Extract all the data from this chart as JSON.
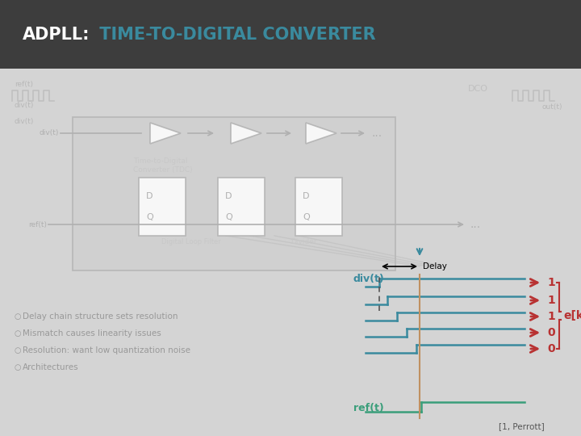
{
  "header_text_white": "ADPLL:",
  "header_text_teal": " TIME-TO-DIGITAL CONVERTER",
  "header_bg": "#3d3d3d",
  "body_bg": "#d4d4d4",
  "teal_color": "#3a8a9e",
  "green_color": "#3a9e7a",
  "red_color": "#b83232",
  "gray_light": "#aaaaaa",
  "gray_med": "#bbbbbb",
  "bullets": [
    "Delay chain structure sets resolution",
    "Mismatch causes linearity issues",
    "Resolution: want low quantization noise",
    "Architectures"
  ],
  "signal_values": [
    "1",
    "1",
    "1",
    "0",
    "0"
  ],
  "ek_label": "e[k]",
  "citation": "[1, Perrott]"
}
